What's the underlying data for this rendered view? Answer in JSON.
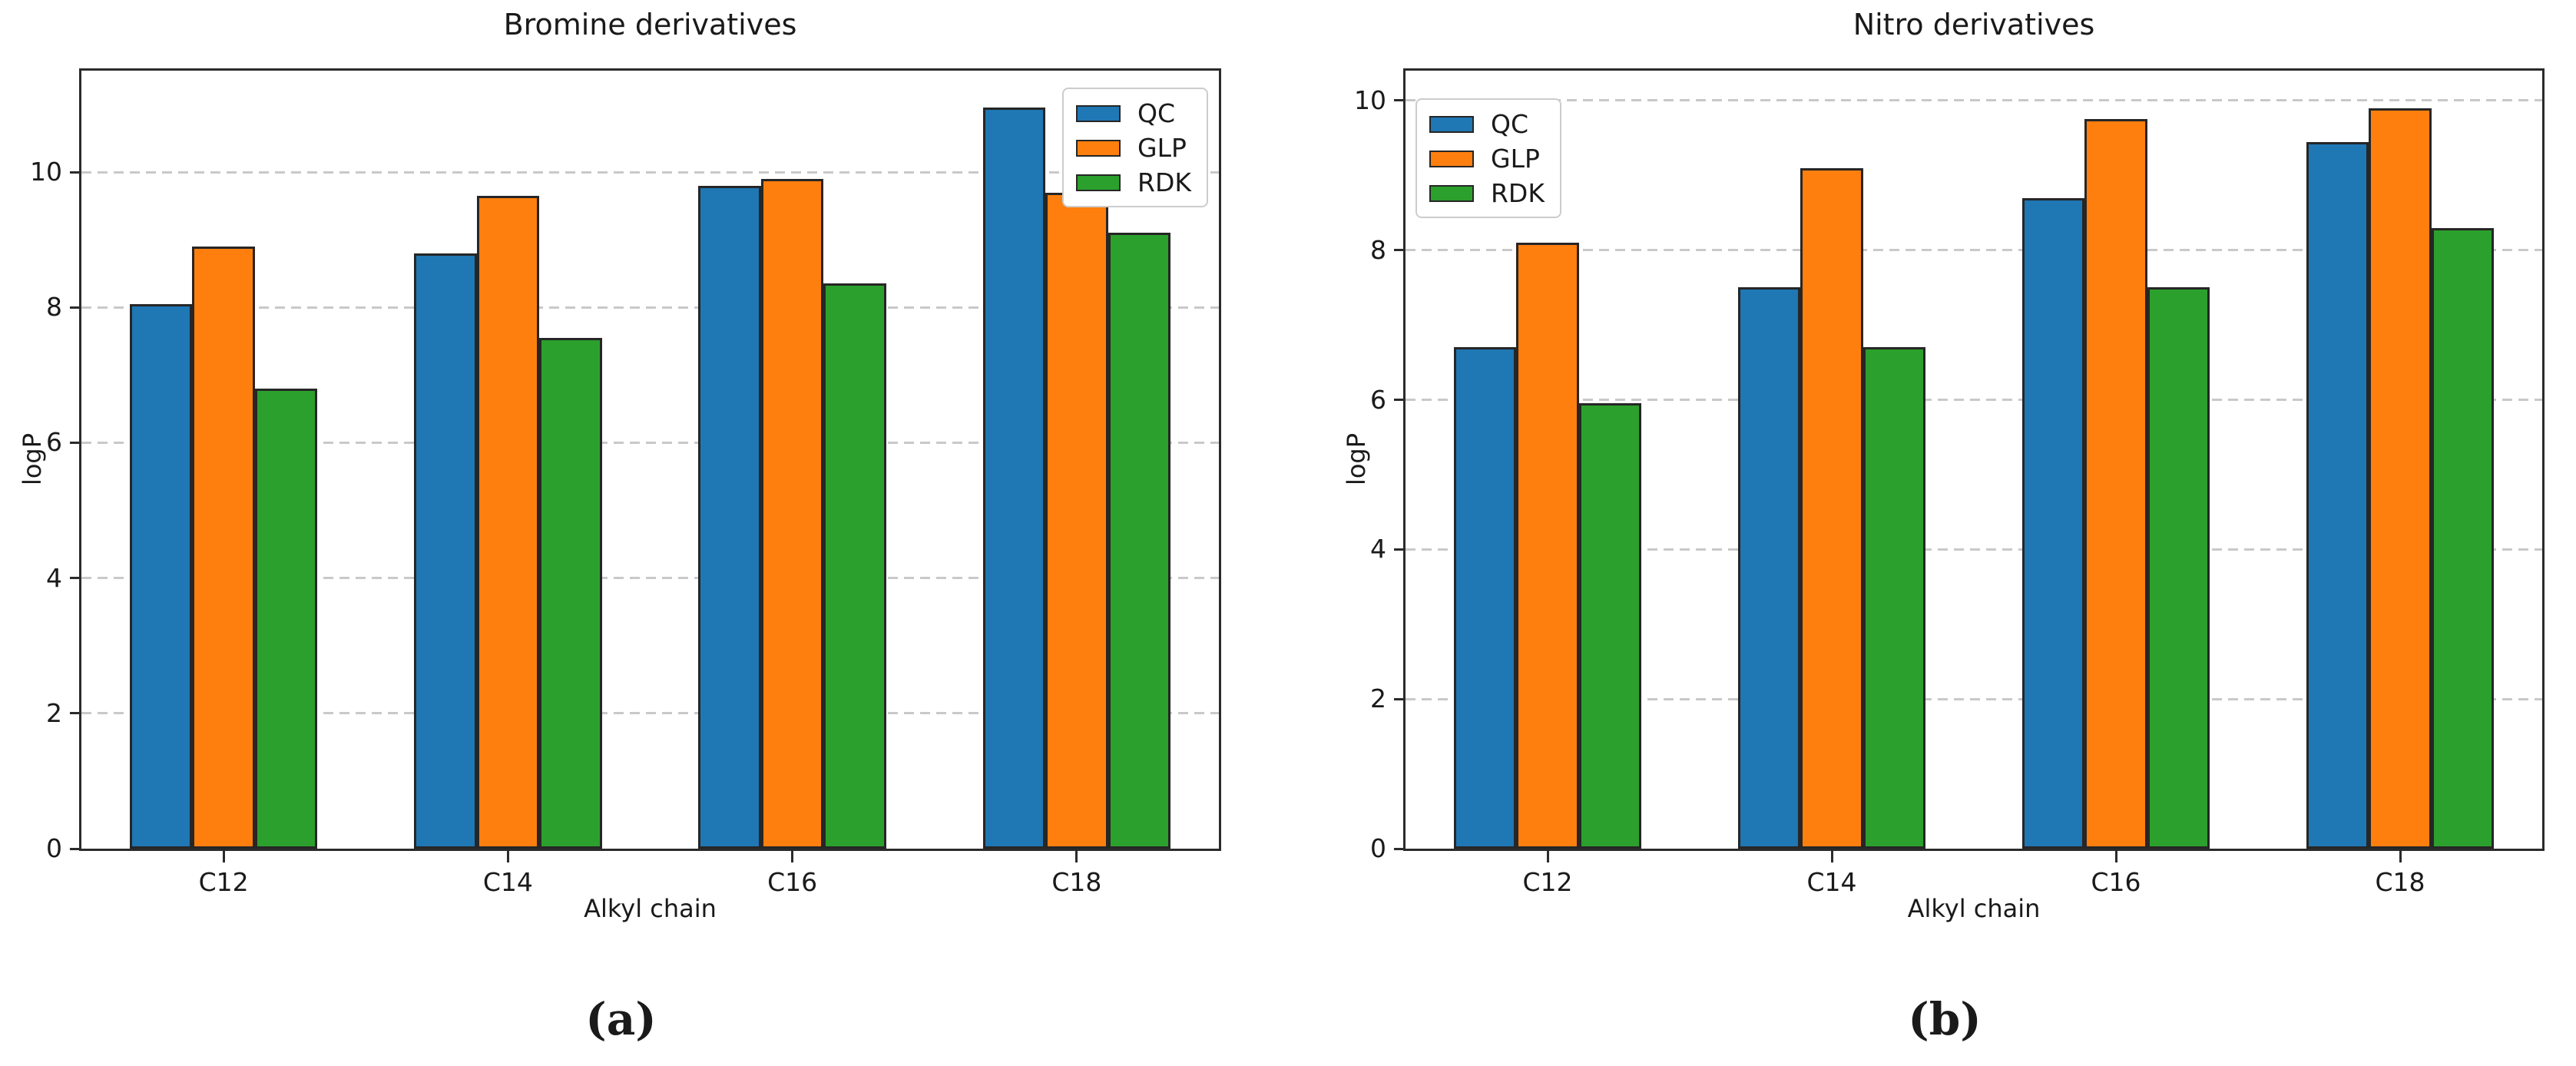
{
  "figure": {
    "background": "#ffffff"
  },
  "colors": {
    "text": "#1a1a1a",
    "spine": "#2b2b2b",
    "grid": "#c9c9c9",
    "bar_edge": "#262626",
    "series_blue": "#1f77b4",
    "series_orange": "#ff7f0e",
    "series_green": "#2ca02c"
  },
  "chart_data": [
    {
      "type": "bar",
      "title": "Bromine derivatives",
      "xlabel": "Alkyl chain",
      "ylabel": "logP",
      "caption": "(a)",
      "categories": [
        "C12",
        "C14",
        "C16",
        "C18"
      ],
      "series": [
        {
          "name": "QC",
          "color": "#1f77b4",
          "values": [
            8.05,
            8.8,
            9.8,
            10.95
          ]
        },
        {
          "name": "GLP",
          "color": "#ff7f0e",
          "values": [
            8.9,
            9.65,
            9.9,
            9.7
          ]
        },
        {
          "name": "RDK",
          "color": "#2ca02c",
          "values": [
            6.8,
            7.55,
            8.35,
            9.1
          ]
        }
      ],
      "ylim": [
        0,
        11.5
      ],
      "yticks": [
        0,
        2,
        4,
        6,
        8,
        10
      ],
      "grid": "dashed-horizontal",
      "legend_position": "top-right"
    },
    {
      "type": "bar",
      "title": "Nitro derivatives",
      "xlabel": "Alkyl chain",
      "ylabel": "logP",
      "caption": "(b)",
      "categories": [
        "C12",
        "C14",
        "C16",
        "C18"
      ],
      "series": [
        {
          "name": "QC",
          "color": "#1f77b4",
          "values": [
            6.7,
            7.5,
            8.7,
            9.45
          ]
        },
        {
          "name": "GLP",
          "color": "#ff7f0e",
          "values": [
            8.1,
            9.1,
            9.75,
            9.9
          ]
        },
        {
          "name": "RDK",
          "color": "#2ca02c",
          "values": [
            5.95,
            6.7,
            7.5,
            8.3
          ]
        }
      ],
      "ylim": [
        0,
        10.4
      ],
      "yticks": [
        0,
        2,
        4,
        6,
        8,
        10
      ],
      "grid": "dashed-horizontal",
      "legend_position": "top-left"
    }
  ]
}
